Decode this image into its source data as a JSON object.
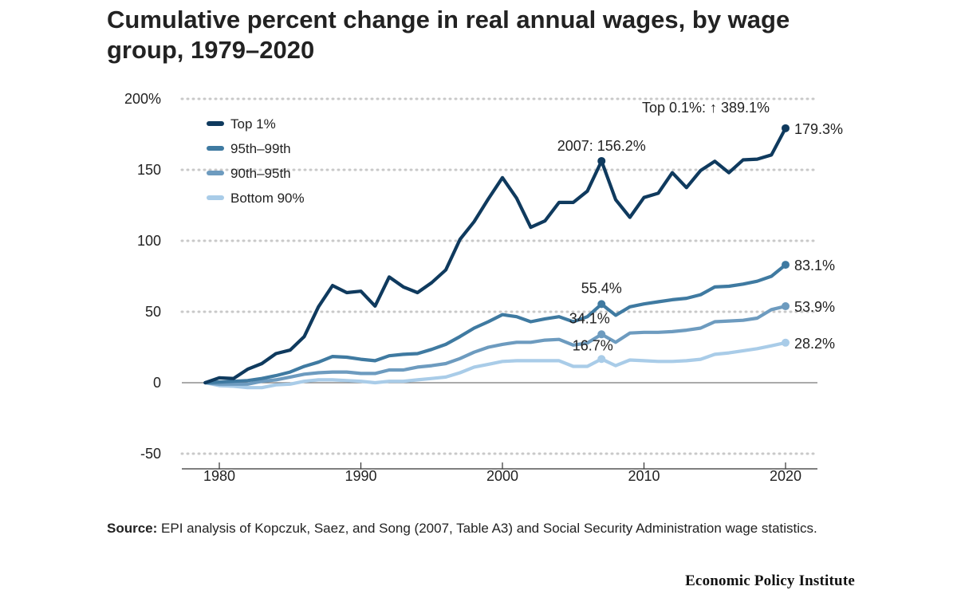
{
  "title": "Cumulative percent change in real annual wages, by wage group, 1979–2020",
  "source": {
    "label": "Source:",
    "text": "EPI analysis of Kopczuk, Saez, and Song (2007, Table A3) and Social Security Administration wage statistics."
  },
  "publisher": "Economic Policy Institute",
  "chart_data": {
    "type": "line",
    "title": "Cumulative percent change in real annual wages, by wage group, 1979–2020",
    "xlabel": "",
    "ylabel": "",
    "xlim": [
      1977,
      2022
    ],
    "ylim": [
      -50,
      200
    ],
    "x_ticks": [
      1980,
      1990,
      2000,
      2010,
      2020
    ],
    "y_ticks": [
      {
        "value": 200,
        "label": "200%"
      },
      {
        "value": 150,
        "label": "150"
      },
      {
        "value": 100,
        "label": "100"
      },
      {
        "value": 50,
        "label": "50"
      },
      {
        "value": 0,
        "label": "0"
      },
      {
        "value": -50,
        "label": "-50"
      }
    ],
    "grid": "horizontal dotted",
    "legend_position": "top-left",
    "x": [
      1979,
      1980,
      1981,
      1982,
      1983,
      1984,
      1985,
      1986,
      1987,
      1988,
      1989,
      1990,
      1991,
      1992,
      1993,
      1994,
      1995,
      1996,
      1997,
      1998,
      1999,
      2000,
      2001,
      2002,
      2003,
      2004,
      2005,
      2006,
      2007,
      2008,
      2009,
      2010,
      2011,
      2012,
      2013,
      2014,
      2015,
      2016,
      2017,
      2018,
      2019,
      2020
    ],
    "series": [
      {
        "name": "Top 1%",
        "color": "#0f3a5e",
        "values": [
          0,
          3.5,
          3,
          9.5,
          13.5,
          20.5,
          23,
          32.5,
          53.5,
          68.5,
          63.5,
          64.5,
          54,
          74.5,
          67.5,
          63.5,
          70.5,
          79.5,
          101,
          113.5,
          129.5,
          144.5,
          130,
          109.5,
          114,
          127,
          127,
          135,
          156.2,
          129,
          116.5,
          130.5,
          133.5,
          148,
          137.5,
          149.5,
          156,
          148,
          157,
          157.5,
          160.5,
          179.3
        ]
      },
      {
        "name": "95th–99th",
        "color": "#3f7aa1",
        "values": [
          0,
          0.5,
          1,
          1.5,
          3,
          5,
          7.5,
          11.5,
          14.5,
          18.5,
          18,
          16.5,
          15.5,
          19,
          20,
          20.5,
          23.5,
          27,
          32.5,
          38.5,
          43,
          48,
          46.5,
          43,
          45,
          46.5,
          43,
          46.5,
          55.4,
          47.5,
          53.5,
          55.5,
          57,
          58.5,
          59.5,
          62,
          67.5,
          68,
          69.5,
          71.5,
          75,
          83.1
        ]
      },
      {
        "name": "90th–95th",
        "color": "#6d9bbf",
        "values": [
          0,
          -1,
          -1,
          -1,
          1,
          2,
          4,
          6,
          7,
          7.5,
          7.5,
          6.5,
          6.5,
          9,
          9,
          11,
          12,
          13.5,
          17,
          21.5,
          25,
          27,
          28.5,
          28.5,
          30,
          30.5,
          26.5,
          28,
          34.1,
          28.5,
          35,
          35.5,
          35.5,
          36,
          37,
          38.5,
          43,
          43.5,
          44,
          45.5,
          51.5,
          53.9
        ]
      },
      {
        "name": "Bottom 90%",
        "color": "#a9cce8",
        "values": [
          0,
          -2,
          -2.5,
          -3.5,
          -3.5,
          -1.5,
          -1,
          1,
          2,
          2,
          1.5,
          1,
          0,
          1,
          1,
          2,
          3,
          4,
          7,
          11,
          13,
          15,
          15.5,
          15.5,
          15.5,
          15.5,
          11.5,
          11.5,
          16.7,
          12,
          16,
          15.5,
          15,
          15,
          15.5,
          16.5,
          20,
          21,
          22.5,
          24,
          26,
          28.2
        ]
      }
    ],
    "annotations": [
      {
        "id": "top1-2007",
        "series": "Top 1%",
        "x": 2007,
        "y": 156.2,
        "text": "2007: 156.2%",
        "marker": true
      },
      {
        "id": "top1-2020",
        "series": "Top 1%",
        "x": 2020,
        "y": 179.3,
        "text": "179.3%",
        "marker": true
      },
      {
        "id": "top01",
        "x": 2020,
        "y": 179.3,
        "text": "Top 0.1%: ↑ 389.1%",
        "marker": false
      },
      {
        "id": "p95-2007",
        "series": "95th–99th",
        "x": 2007,
        "y": 55.4,
        "text": "55.4%",
        "marker": true
      },
      {
        "id": "p95-2020",
        "series": "95th–99th",
        "x": 2020,
        "y": 83.1,
        "text": "83.1%",
        "marker": true
      },
      {
        "id": "p90-2007",
        "series": "90th–95th",
        "x": 2007,
        "y": 34.1,
        "text": "34.1%",
        "marker": true
      },
      {
        "id": "p90-2020",
        "series": "90th–95th",
        "x": 2020,
        "y": 53.9,
        "text": "53.9%",
        "marker": true
      },
      {
        "id": "b90-2007",
        "series": "Bottom 90%",
        "x": 2007,
        "y": 16.7,
        "text": "16.7%",
        "marker": true
      },
      {
        "id": "b90-2020",
        "series": "Bottom 90%",
        "x": 2020,
        "y": 28.2,
        "text": "28.2%",
        "marker": true
      }
    ]
  }
}
